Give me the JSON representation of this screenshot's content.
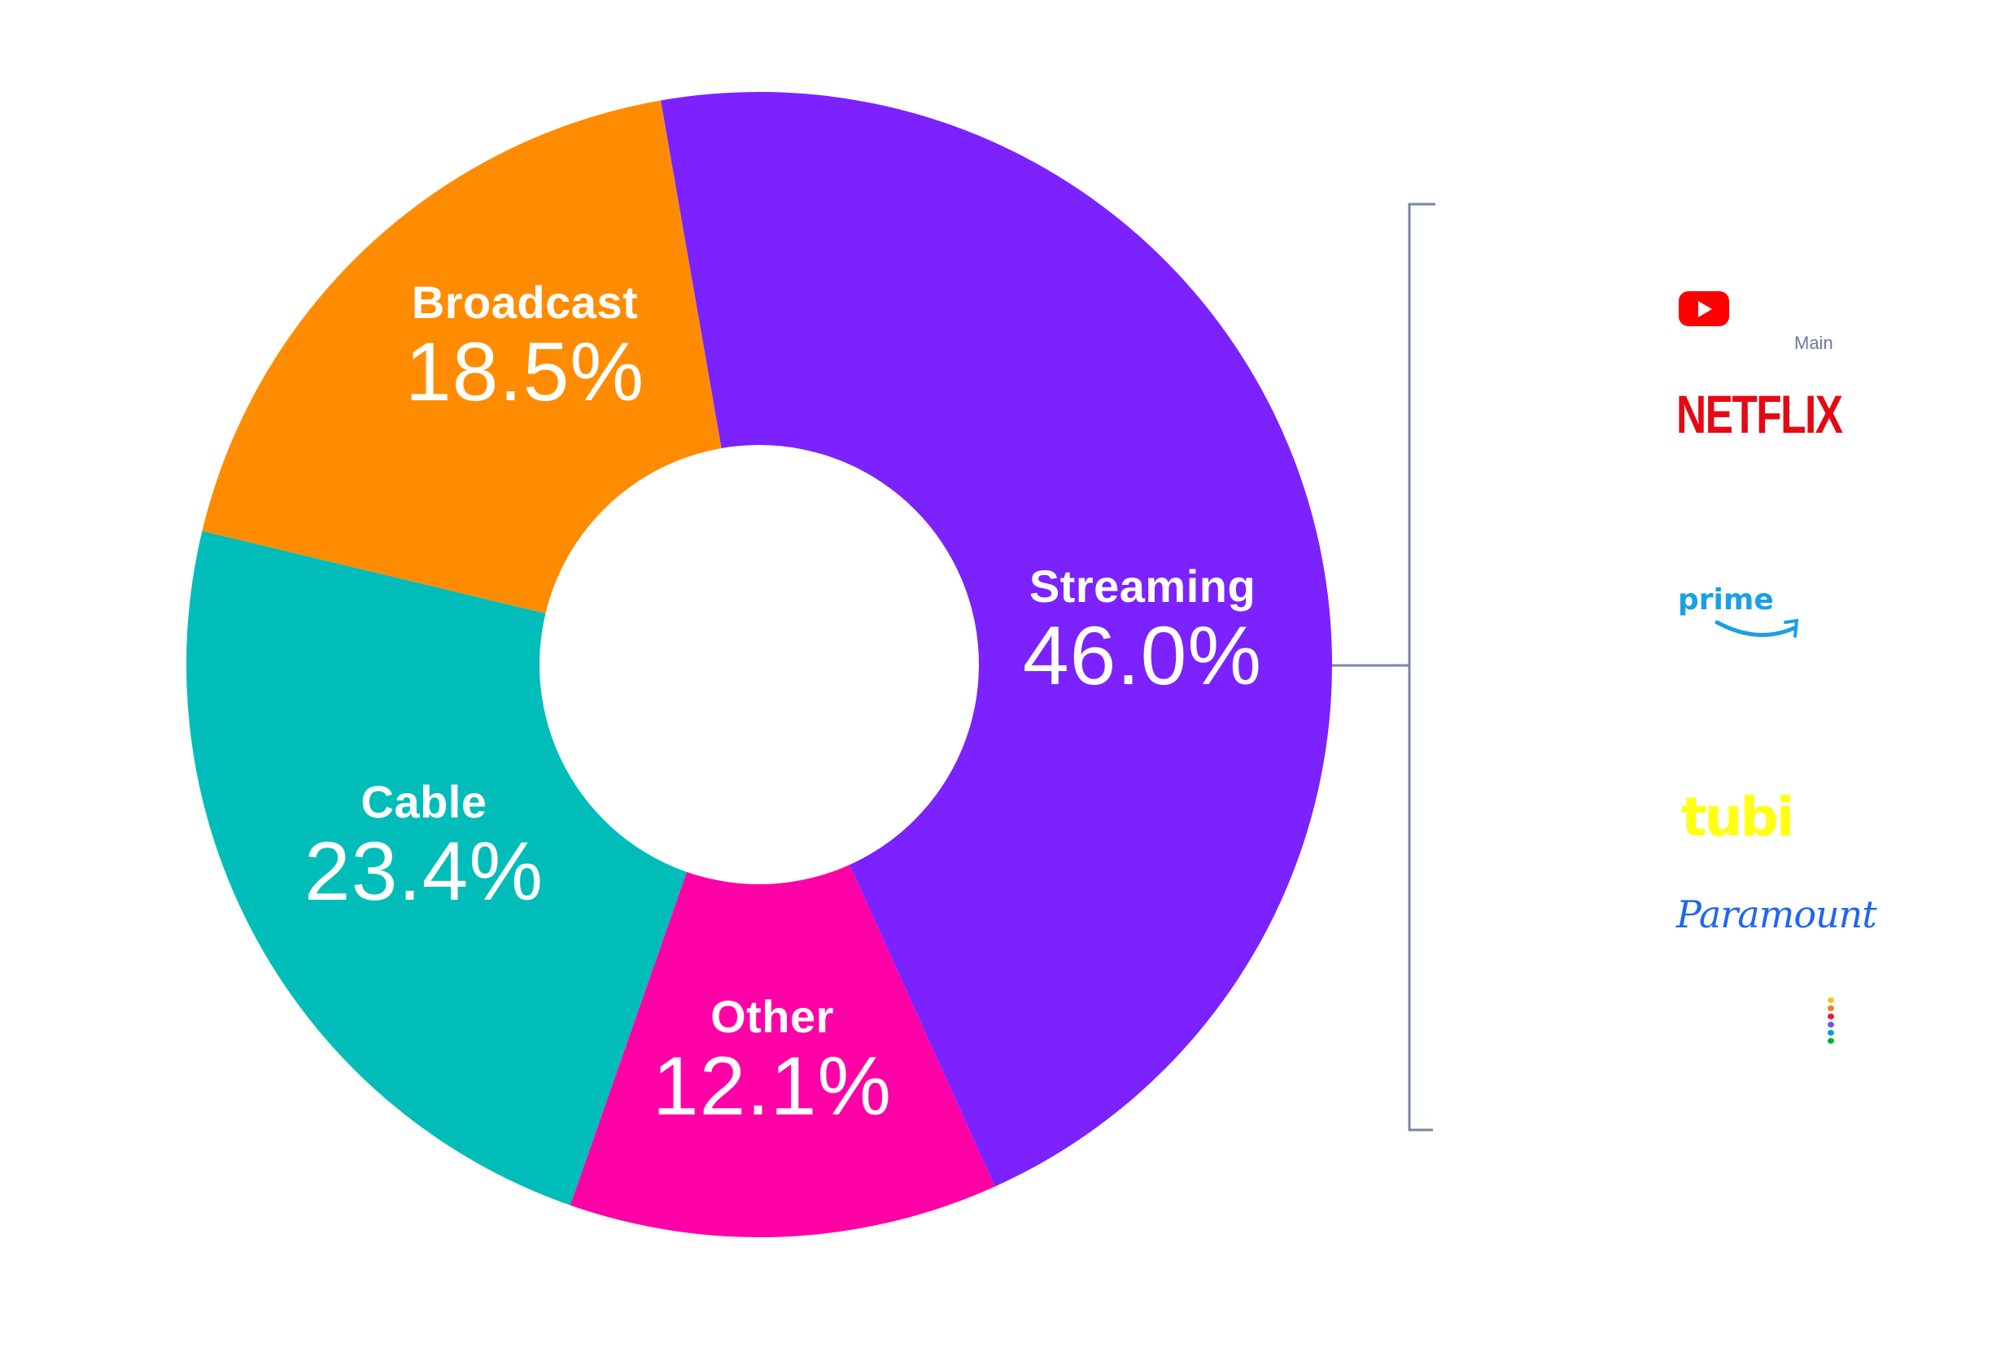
{
  "chart_data": {
    "type": "pie",
    "subtype": "donut",
    "title": "",
    "categories": [
      "Streaming",
      "Other",
      "Cable",
      "Broadcast"
    ],
    "values": [
      46.0,
      12.1,
      23.4,
      18.5
    ],
    "value_labels": [
      "46.0%",
      "12.1%",
      "23.4%",
      "18.5%"
    ],
    "colors": [
      "#7B22FF",
      "#FF00A6",
      "#00BDB9",
      "#FF8C00"
    ],
    "start_angle_deg_from_top_clockwise": -9.9,
    "annotation": {
      "type": "bracket",
      "attached_to": "Streaming",
      "items": [
        "YouTube",
        "Main",
        "Netflix",
        "Prime Video",
        "Tubi",
        "Paramount",
        "Peacock"
      ]
    }
  },
  "slices": [
    {
      "name": "Streaming",
      "pct": "46.0%",
      "value": 46.0,
      "color": "#7B22FF"
    },
    {
      "name": "Other",
      "pct": "12.1%",
      "value": 12.1,
      "color": "#FF00A6"
    },
    {
      "name": "Cable",
      "pct": "23.4%",
      "value": 23.4,
      "color": "#00BDB9"
    },
    {
      "name": "Broadcast",
      "pct": "18.5%",
      "value": 18.5,
      "color": "#FF8C00"
    }
  ],
  "bracket": {
    "color": "#7A86A8",
    "main_label": "Main",
    "logos": {
      "youtube": {
        "color": "#FF0000"
      },
      "netflix": {
        "text": "NETFLIX",
        "color": "#E50914"
      },
      "prime": {
        "text": "prime",
        "color": "#1BA0E2"
      },
      "tubi": {
        "text": "tubi",
        "color": "#FFFF13"
      },
      "paramount": {
        "text": "Paramount",
        "color": "#1F66F2"
      },
      "peacock_dots": [
        "#FCC31B",
        "#F77A20",
        "#EE1342",
        "#6E55DC",
        "#069DE0",
        "#05AC3F"
      ]
    }
  }
}
